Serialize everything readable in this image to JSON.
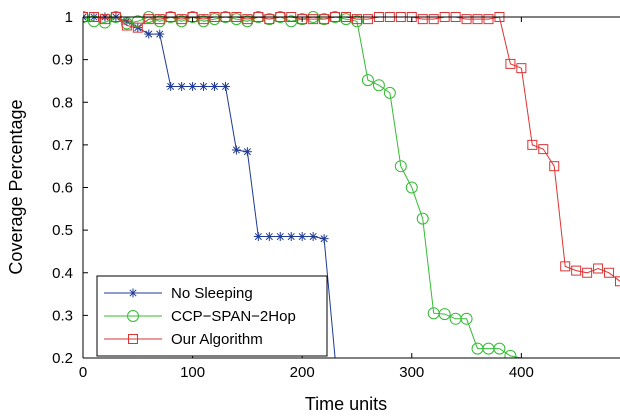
{
  "chart_data": {
    "type": "line",
    "title": "",
    "xlabel": "Time units",
    "ylabel": "Coverage Percentage",
    "xlim": [
      0,
      490
    ],
    "ylim": [
      0.2,
      1.0
    ],
    "xticks": [
      0,
      100,
      200,
      300,
      400
    ],
    "yticks": [
      0.2,
      0.3,
      0.4,
      0.5,
      0.6,
      0.7,
      0.8,
      0.9,
      1
    ],
    "grid": false,
    "legend_position": "bottom-left",
    "series": [
      {
        "name": "No Sleeping",
        "color": "#1f3a93",
        "marker": "asterisk",
        "x": [
          0,
          10,
          20,
          30,
          40,
          50,
          60,
          70,
          80,
          90,
          100,
          110,
          120,
          130,
          140,
          150,
          160,
          170,
          180,
          190,
          200,
          210,
          220,
          230
        ],
        "y": [
          1.0,
          1.0,
          1.0,
          1.0,
          0.99,
          0.975,
          0.96,
          0.96,
          0.837,
          0.837,
          0.837,
          0.837,
          0.837,
          0.837,
          0.688,
          0.684,
          0.485,
          0.485,
          0.485,
          0.485,
          0.485,
          0.485,
          0.48,
          0.2
        ]
      },
      {
        "name": "CCP−SPAN−2Hop",
        "color": "#33bb33",
        "marker": "circle",
        "x": [
          0,
          10,
          20,
          30,
          40,
          50,
          60,
          70,
          80,
          90,
          100,
          110,
          120,
          130,
          140,
          150,
          160,
          170,
          180,
          190,
          200,
          210,
          220,
          230,
          240,
          250,
          260,
          270,
          280,
          290,
          300,
          310,
          320,
          330,
          340,
          350,
          360,
          370,
          380,
          390,
          400
        ],
        "y": [
          1.0,
          0.99,
          0.987,
          1.0,
          0.985,
          0.99,
          1.0,
          0.99,
          1.0,
          0.99,
          1.0,
          0.99,
          0.995,
          1.0,
          0.995,
          0.99,
          1.0,
          0.995,
          1.0,
          0.99,
          0.995,
          1.0,
          0.995,
          1.0,
          0.995,
          0.99,
          0.852,
          0.84,
          0.822,
          0.65,
          0.6,
          0.527,
          0.305,
          0.303,
          0.292,
          0.292,
          0.222,
          0.222,
          0.222,
          0.205,
          0.2
        ]
      },
      {
        "name": "Our Algorithm",
        "color": "#dd3333",
        "marker": "square",
        "x": [
          0,
          10,
          20,
          30,
          40,
          50,
          60,
          70,
          80,
          90,
          100,
          110,
          120,
          130,
          140,
          150,
          160,
          170,
          180,
          190,
          200,
          210,
          220,
          230,
          240,
          250,
          260,
          270,
          280,
          290,
          300,
          310,
          320,
          330,
          340,
          350,
          360,
          370,
          380,
          390,
          400,
          410,
          420,
          430,
          440,
          450,
          460,
          470,
          480,
          490
        ],
        "y": [
          1.0,
          1.0,
          0.995,
          1.0,
          0.98,
          0.975,
          0.995,
          0.995,
          1.0,
          0.995,
          1.0,
          0.995,
          1.0,
          1.0,
          1.0,
          0.995,
          1.0,
          0.995,
          1.0,
          1.0,
          0.995,
          0.995,
          0.995,
          1.0,
          1.0,
          0.995,
          0.995,
          1.0,
          1.0,
          1.0,
          1.0,
          0.995,
          0.995,
          1.0,
          1.0,
          0.995,
          0.995,
          0.995,
          1.0,
          0.89,
          0.88,
          0.7,
          0.69,
          0.65,
          0.415,
          0.405,
          0.4,
          0.41,
          0.4,
          0.38
        ]
      }
    ]
  }
}
